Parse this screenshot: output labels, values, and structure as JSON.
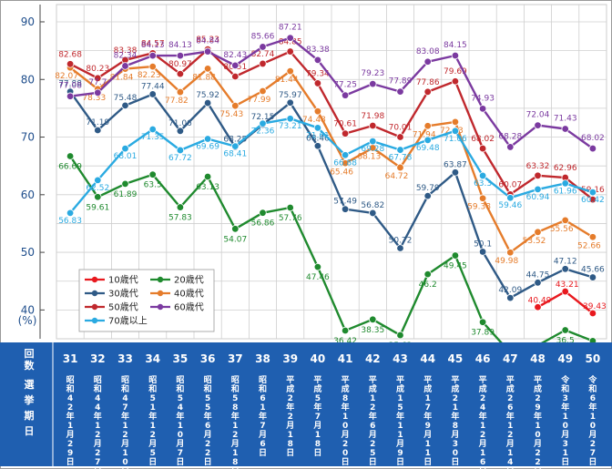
{
  "chart_data": {
    "type": "line",
    "y_unit": "(%)",
    "ylim": [
      35,
      93
    ],
    "yticks": [
      40,
      50,
      60,
      70,
      80,
      90
    ],
    "grid": true,
    "legend_position": "bottom-left",
    "bottom_headers": [
      "回数",
      "選挙期日"
    ],
    "x": [
      "31",
      "32",
      "33",
      "34",
      "35",
      "36",
      "37",
      "38",
      "39",
      "40",
      "41",
      "42",
      "43",
      "44",
      "45",
      "46",
      "47",
      "48",
      "49",
      "50"
    ],
    "dates": [
      "昭和42年1月29日",
      "昭和44年12月27日",
      "昭和47年12月10日",
      "昭和51年12月5日",
      "昭和54年10月7日",
      "昭和55年6月22日",
      "昭和58年12月18日",
      "昭和61年7月6日",
      "平成2年2月18日",
      "平成5年7月18日",
      "平成8年10月20日",
      "平成12年6月25日",
      "平成15年11月9日",
      "平成17年9月11日",
      "平成21年8月30日",
      "平成24年12月16日",
      "平成26年12月14日",
      "平成29年10月22日",
      "令和3年10月31日",
      "令和6年10月27日"
    ],
    "series": [
      {
        "name": "10歳代",
        "color": "#e8191e",
        "values": [
          null,
          null,
          null,
          null,
          null,
          null,
          null,
          null,
          null,
          null,
          null,
          null,
          null,
          null,
          null,
          null,
          null,
          40.49,
          43.21,
          39.43
        ]
      },
      {
        "name": "20歳代",
        "color": "#1f8a2e",
        "values": [
          66.69,
          59.61,
          61.89,
          63.5,
          57.83,
          63.13,
          54.07,
          56.86,
          57.76,
          47.46,
          36.42,
          38.35,
          35.62,
          46.2,
          49.45,
          37.89,
          32.58,
          33.85,
          36.5,
          34.62
        ]
      },
      {
        "name": "30歳代",
        "color": "#2f5a86",
        "values": [
          77.88,
          71.19,
          75.48,
          77.44,
          71.06,
          75.92,
          68.25,
          72.15,
          75.97,
          68.46,
          57.49,
          56.82,
          50.72,
          59.79,
          63.87,
          50.1,
          42.09,
          44.75,
          47.12,
          45.66
        ]
      },
      {
        "name": "40歳代",
        "color": "#e57c2b",
        "values": [
          82.07,
          78.33,
          81.84,
          82.23,
          77.82,
          81.88,
          75.43,
          77.99,
          81.44,
          74.48,
          65.46,
          68.13,
          64.72,
          71.94,
          72.63,
          59.38,
          49.98,
          53.52,
          55.56,
          52.66
        ]
      },
      {
        "name": "50歳代",
        "color": "#c0282d",
        "values": [
          82.68,
          80.23,
          83.38,
          84.57,
          80.97,
          85.23,
          80.51,
          82.74,
          84.85,
          79.34,
          70.61,
          71.98,
          70.01,
          77.86,
          79.69,
          68.02,
          60.07,
          63.32,
          62.96,
          59.16
        ]
      },
      {
        "name": "60歳代",
        "color": "#7b3aa0",
        "values": [
          77.08,
          77.7,
          82.34,
          84.13,
          84.13,
          84.84,
          82.43,
          85.66,
          87.21,
          83.38,
          77.25,
          79.23,
          77.89,
          83.08,
          84.15,
          74.93,
          68.28,
          72.04,
          71.43,
          68.02
        ]
      },
      {
        "name": "70歳以上",
        "color": "#2aaae1",
        "values": [
          56.83,
          62.52,
          68.01,
          71.35,
          67.72,
          69.69,
          68.41,
          72.36,
          73.21,
          71.61,
          66.88,
          69.28,
          67.78,
          69.48,
          71.06,
          63.3,
          59.46,
          60.94,
          61.96,
          60.42
        ]
      }
    ]
  },
  "labels": {
    "10歳代": {
      "40.49": "40.49",
      "43.21": "43.21",
      "39.43": "39.43"
    }
  }
}
